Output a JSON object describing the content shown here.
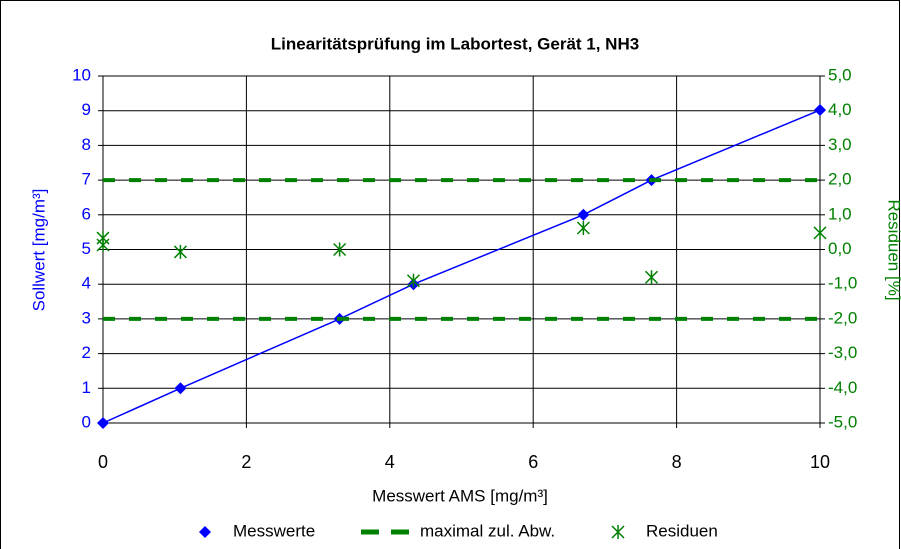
{
  "chart_data": {
    "type": "scatter",
    "title": "Linearitätsprüfung im Labortest, Gerät 1, NH3",
    "x_label": "Messwert AMS [mg/m³]",
    "y_label": "Sollwert [mg/m³]",
    "y2_label": "Residuen [%]",
    "xlim": [
      0,
      10
    ],
    "xticks": [
      0,
      2,
      4,
      6,
      8,
      10
    ],
    "ylim": [
      0,
      10
    ],
    "yticks": [
      0,
      1,
      2,
      3,
      4,
      5,
      6,
      7,
      8,
      9,
      10
    ],
    "y2lim": [
      -5,
      5
    ],
    "y2ticks": [
      {
        "value": -5,
        "label": "-5,0"
      },
      {
        "value": -4,
        "label": "-4,0"
      },
      {
        "value": -3,
        "label": "-3,0"
      },
      {
        "value": -2,
        "label": "-2,0"
      },
      {
        "value": -1,
        "label": "-1,0"
      },
      {
        "value": 0,
        "label": "0,0"
      },
      {
        "value": 1,
        "label": "1,0"
      },
      {
        "value": 2,
        "label": "2,0"
      },
      {
        "value": 3,
        "label": "3,0"
      },
      {
        "value": 4,
        "label": "4,0"
      },
      {
        "value": 5,
        "label": "5,0"
      }
    ],
    "grid": true,
    "legend": "bottom",
    "series": [
      {
        "name": "Messwerte",
        "color": "#0000ff",
        "marker": "diamond",
        "x": [
          0,
          1.08,
          3.3,
          4.33,
          6.7,
          7.65,
          10
        ],
        "values": [
          0,
          1,
          3,
          4,
          6,
          7,
          9.02
        ]
      },
      {
        "name": "maximal zul. Abw.",
        "color": "#008000",
        "marker": "dash",
        "axis": "y2",
        "values": [
          2,
          -2
        ]
      },
      {
        "name": "Residuen",
        "color": "#008000",
        "marker": "asterisk",
        "axis": "y2",
        "x": [
          0,
          0,
          1.08,
          3.3,
          4.33,
          6.7,
          7.65,
          10
        ],
        "values": [
          0.33,
          0.13,
          -0.07,
          0,
          -0.9,
          0.62,
          -0.8,
          0.48
        ]
      }
    ]
  }
}
